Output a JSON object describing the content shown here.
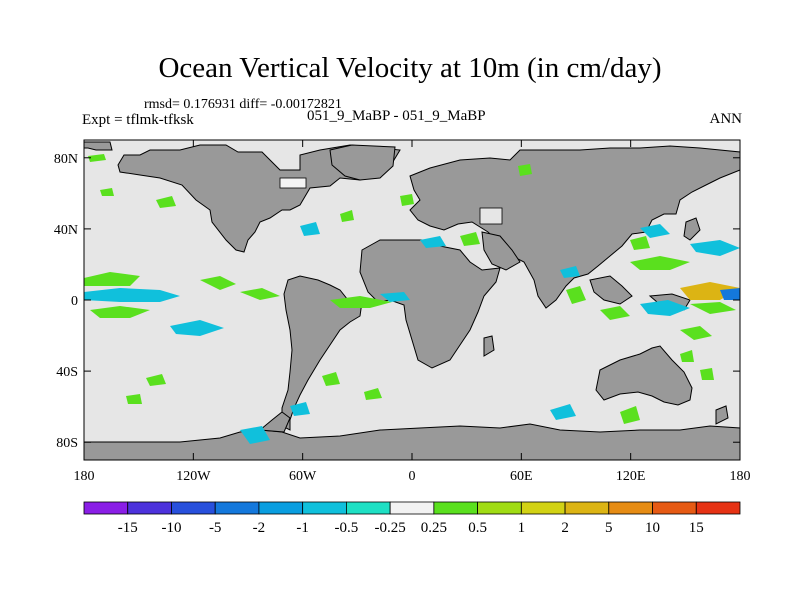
{
  "title": "Ocean Vertical Velocity at 10m (in cm/day)",
  "stats_text": "rmsd= 0.176931 diff= -0.00172821",
  "expt_left": "Expt = tflmk-tfksk",
  "expt_center": "051_9_MaBP - 051_9_MaBP",
  "season": "ANN",
  "map": {
    "lat_ticks": [
      {
        "lat": 80,
        "label": "80N"
      },
      {
        "lat": 40,
        "label": "40N"
      },
      {
        "lat": 0,
        "label": "0"
      },
      {
        "lat": -40,
        "label": "40S"
      },
      {
        "lat": -80,
        "label": "80S"
      }
    ],
    "lon_ticks": [
      {
        "lon": -180,
        "label": "180"
      },
      {
        "lon": -120,
        "label": "120W"
      },
      {
        "lon": -60,
        "label": "60W"
      },
      {
        "lon": 0,
        "label": "0"
      },
      {
        "lon": 60,
        "label": "60E"
      },
      {
        "lon": 120,
        "label": "120E"
      },
      {
        "lon": 180,
        "label": "180"
      }
    ],
    "colors": {
      "ocean": "#e6e6e6",
      "land": "#999999",
      "border": "#000000"
    }
  },
  "colorbar": {
    "colors": [
      "#8a1ee6",
      "#4d32dc",
      "#2850dc",
      "#1478dc",
      "#0a9ee0",
      "#10c0dc",
      "#1ee0c4",
      "#f2f2f2",
      "#5ae01e",
      "#a0dc14",
      "#d2d214",
      "#dcb414",
      "#e68c14",
      "#e65a14",
      "#e63214"
    ],
    "labels": [
      "-15",
      "-10",
      "-5",
      "-2",
      "-1",
      "-0.5",
      "-0.25",
      "0.25",
      "0.5",
      "1",
      "2",
      "5",
      "10",
      "15"
    ]
  }
}
